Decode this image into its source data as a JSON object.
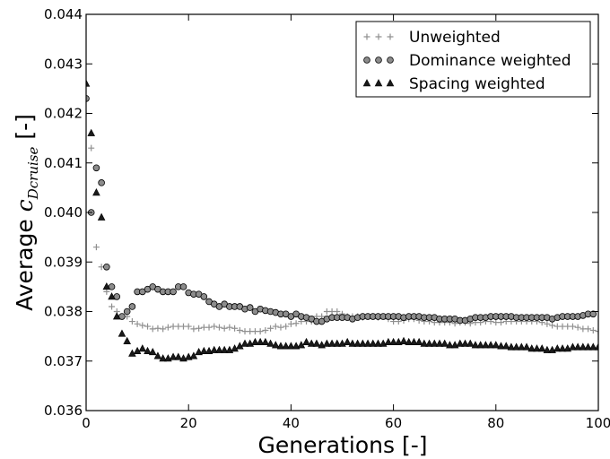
{
  "chart_data": {
    "type": "scatter",
    "xlabel": "Generations [-]",
    "ylabel": {
      "prefix": "Average ",
      "symbol": "c",
      "subscript": "Dcruise",
      "suffix": " [-]"
    },
    "xlim": [
      0,
      100
    ],
    "ylim": [
      0.036,
      0.044
    ],
    "xticks": [
      0,
      20,
      40,
      60,
      80,
      100
    ],
    "yticks": [
      0.036,
      0.037,
      0.038,
      0.039,
      0.04,
      0.041,
      0.042,
      0.043,
      0.044
    ],
    "grid": false,
    "legend_position": "top-right",
    "series": [
      {
        "name": "Unweighted",
        "marker": "plus",
        "color": "#909090",
        "x": [
          0,
          1,
          2,
          3,
          4,
          5,
          6,
          7,
          8,
          9,
          10,
          11,
          12,
          13,
          14,
          15,
          16,
          17,
          18,
          19,
          20,
          21,
          22,
          23,
          24,
          25,
          26,
          27,
          28,
          29,
          30,
          31,
          32,
          33,
          34,
          35,
          36,
          37,
          38,
          39,
          40,
          41,
          42,
          43,
          44,
          45,
          46,
          47,
          48,
          49,
          50,
          51,
          52,
          53,
          54,
          55,
          56,
          57,
          58,
          59,
          60,
          61,
          62,
          63,
          64,
          65,
          66,
          67,
          68,
          69,
          70,
          71,
          72,
          73,
          74,
          75,
          76,
          77,
          78,
          79,
          80,
          81,
          82,
          83,
          84,
          85,
          86,
          87,
          88,
          89,
          90,
          91,
          92,
          93,
          94,
          95,
          96,
          97,
          98,
          99,
          100
        ],
        "values": [
          0.042,
          0.0413,
          0.0393,
          0.0389,
          0.0384,
          0.0381,
          0.038,
          0.0379,
          0.0379,
          0.0378,
          0.03775,
          0.03772,
          0.0377,
          0.03765,
          0.03766,
          0.03765,
          0.03768,
          0.0377,
          0.0377,
          0.0377,
          0.0377,
          0.03765,
          0.03766,
          0.03768,
          0.03768,
          0.0377,
          0.03768,
          0.03766,
          0.03768,
          0.03766,
          0.03762,
          0.0376,
          0.0376,
          0.0376,
          0.0376,
          0.03762,
          0.03766,
          0.0377,
          0.03768,
          0.0377,
          0.03775,
          0.03776,
          0.0378,
          0.0378,
          0.0378,
          0.0379,
          0.0379,
          0.038,
          0.038,
          0.038,
          0.03795,
          0.0379,
          0.0379,
          0.0379,
          0.03788,
          0.0379,
          0.0379,
          0.03788,
          0.0379,
          0.03785,
          0.0378,
          0.0378,
          0.03782,
          0.03785,
          0.03785,
          0.03782,
          0.0378,
          0.0378,
          0.03778,
          0.03778,
          0.03778,
          0.03778,
          0.03776,
          0.03778,
          0.03778,
          0.03776,
          0.03778,
          0.03778,
          0.0378,
          0.0378,
          0.03778,
          0.03778,
          0.0378,
          0.0378,
          0.0378,
          0.0378,
          0.0378,
          0.0378,
          0.0378,
          0.03778,
          0.03775,
          0.03772,
          0.0377,
          0.0377,
          0.0377,
          0.0377,
          0.03768,
          0.03765,
          0.03765,
          0.03762,
          0.0376
        ]
      },
      {
        "name": "Dominance weighted",
        "marker": "circle",
        "color": "#8c8c8c",
        "x": [
          0,
          1,
          2,
          3,
          4,
          5,
          6,
          7,
          8,
          9,
          10,
          11,
          12,
          13,
          14,
          15,
          16,
          17,
          18,
          19,
          20,
          21,
          22,
          23,
          24,
          25,
          26,
          27,
          28,
          29,
          30,
          31,
          32,
          33,
          34,
          35,
          36,
          37,
          38,
          39,
          40,
          41,
          42,
          43,
          44,
          45,
          46,
          47,
          48,
          49,
          50,
          51,
          52,
          53,
          54,
          55,
          56,
          57,
          58,
          59,
          60,
          61,
          62,
          63,
          64,
          65,
          66,
          67,
          68,
          69,
          70,
          71,
          72,
          73,
          74,
          75,
          76,
          77,
          78,
          79,
          80,
          81,
          82,
          83,
          84,
          85,
          86,
          87,
          88,
          89,
          90,
          91,
          92,
          93,
          94,
          95,
          96,
          97,
          98,
          99
        ],
        "values": [
          0.0423,
          0.04,
          0.0409,
          0.0406,
          0.0389,
          0.0385,
          0.0383,
          0.0379,
          0.038,
          0.0381,
          0.0384,
          0.0384,
          0.03845,
          0.0385,
          0.03845,
          0.0384,
          0.0384,
          0.0384,
          0.0385,
          0.0385,
          0.03838,
          0.03835,
          0.03835,
          0.0383,
          0.0382,
          0.03815,
          0.0381,
          0.03815,
          0.0381,
          0.0381,
          0.0381,
          0.03805,
          0.03808,
          0.038,
          0.03805,
          0.03802,
          0.038,
          0.03798,
          0.03795,
          0.03795,
          0.0379,
          0.03795,
          0.0379,
          0.03788,
          0.03785,
          0.0378,
          0.0378,
          0.03785,
          0.03788,
          0.03788,
          0.03788,
          0.03788,
          0.03785,
          0.03788,
          0.0379,
          0.0379,
          0.0379,
          0.0379,
          0.0379,
          0.0379,
          0.0379,
          0.0379,
          0.03788,
          0.0379,
          0.0379,
          0.0379,
          0.03788,
          0.03788,
          0.03788,
          0.03785,
          0.03785,
          0.03785,
          0.03785,
          0.03782,
          0.03782,
          0.03785,
          0.03788,
          0.03788,
          0.03788,
          0.0379,
          0.0379,
          0.0379,
          0.0379,
          0.0379,
          0.03788,
          0.03788,
          0.03788,
          0.03788,
          0.03788,
          0.03788,
          0.03788,
          0.03785,
          0.03788,
          0.0379,
          0.0379,
          0.0379,
          0.0379,
          0.03792,
          0.03795,
          0.03795
        ]
      },
      {
        "name": "Spacing weighted",
        "marker": "triangle",
        "color": "#1a1a1a",
        "x": [
          0,
          1,
          2,
          3,
          4,
          5,
          6,
          7,
          8,
          9,
          10,
          11,
          12,
          13,
          14,
          15,
          16,
          17,
          18,
          19,
          20,
          21,
          22,
          23,
          24,
          25,
          26,
          27,
          28,
          29,
          30,
          31,
          32,
          33,
          34,
          35,
          36,
          37,
          38,
          39,
          40,
          41,
          42,
          43,
          44,
          45,
          46,
          47,
          48,
          49,
          50,
          51,
          52,
          53,
          54,
          55,
          56,
          57,
          58,
          59,
          60,
          61,
          62,
          63,
          64,
          65,
          66,
          67,
          68,
          69,
          70,
          71,
          72,
          73,
          74,
          75,
          76,
          77,
          78,
          79,
          80,
          81,
          82,
          83,
          84,
          85,
          86,
          87,
          88,
          89,
          90,
          91,
          92,
          93,
          94,
          95,
          96,
          97,
          98,
          99,
          100
        ],
        "values": [
          0.0426,
          0.0416,
          0.0404,
          0.0399,
          0.0385,
          0.0383,
          0.0379,
          0.03755,
          0.0374,
          0.03715,
          0.0372,
          0.03725,
          0.0372,
          0.03718,
          0.0371,
          0.03705,
          0.03705,
          0.03708,
          0.03708,
          0.03705,
          0.03708,
          0.0371,
          0.03718,
          0.0372,
          0.0372,
          0.03722,
          0.03722,
          0.03722,
          0.03722,
          0.03725,
          0.0373,
          0.03735,
          0.03735,
          0.03738,
          0.03738,
          0.03738,
          0.03735,
          0.03732,
          0.0373,
          0.0373,
          0.0373,
          0.0373,
          0.03732,
          0.03738,
          0.03735,
          0.03735,
          0.03732,
          0.03735,
          0.03735,
          0.03735,
          0.03735,
          0.03738,
          0.03735,
          0.03735,
          0.03735,
          0.03735,
          0.03735,
          0.03735,
          0.03735,
          0.03738,
          0.03738,
          0.03738,
          0.0374,
          0.03738,
          0.03738,
          0.03738,
          0.03735,
          0.03735,
          0.03735,
          0.03735,
          0.03735,
          0.03732,
          0.03732,
          0.03735,
          0.03735,
          0.03735,
          0.03732,
          0.03732,
          0.03732,
          0.03732,
          0.03732,
          0.0373,
          0.0373,
          0.03728,
          0.03728,
          0.03728,
          0.03728,
          0.03725,
          0.03725,
          0.03725,
          0.03722,
          0.03722,
          0.03725,
          0.03725,
          0.03725,
          0.03728,
          0.03728,
          0.03728,
          0.03728,
          0.03728,
          0.03728
        ]
      }
    ]
  }
}
